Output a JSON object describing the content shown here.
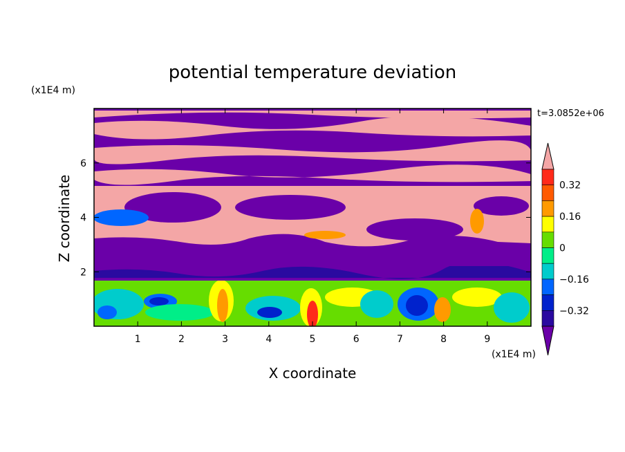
{
  "chart_data": {
    "type": "heatmap",
    "title": "potential temperature deviation",
    "xlabel": "X coordinate",
    "ylabel": "Z coordinate",
    "x_unit": "(x1E4 m)",
    "y_unit": "(x1E4 m)",
    "time_label": "t=3.0852e+06",
    "xlim": [
      0,
      10
    ],
    "ylim": [
      0,
      8
    ],
    "x_ticks": [
      "1",
      "2",
      "3",
      "4",
      "5",
      "6",
      "7",
      "8",
      "9"
    ],
    "y_ticks": [
      "2",
      "4",
      "6"
    ],
    "colorbar": {
      "tick_labels": [
        "0.32",
        "0.16",
        "0",
        "−0.16",
        "−0.32"
      ],
      "levels_top_to_bottom": [
        {
          "label": "above 0.40",
          "color": "#f4a6a6"
        },
        {
          "label": "0.32 to 0.40",
          "color": "#ff2a1a"
        },
        {
          "label": "0.24 to 0.32",
          "color": "#ff5a00"
        },
        {
          "label": "0.16 to 0.24",
          "color": "#ff9a00"
        },
        {
          "label": "0.08 to 0.16",
          "color": "#ffff00"
        },
        {
          "label": "0 to 0.08",
          "color": "#66dd00"
        },
        {
          "label": "-0.08 to 0",
          "color": "#00ee88"
        },
        {
          "label": "-0.16 to -0.08",
          "color": "#00cccc"
        },
        {
          "label": "-0.24 to -0.16",
          "color": "#0066ff"
        },
        {
          "label": "-0.32 to -0.24",
          "color": "#0022cc"
        },
        {
          "label": "-0.40 to -0.32",
          "color": "#2a0aa0"
        },
        {
          "label": "below -0.40",
          "color": "#6a00a8"
        }
      ]
    }
  },
  "colors": {
    "purple": "#6a00a8",
    "pink": "#f4a6a6",
    "red": "#ff2a1a",
    "orange": "#ff9a00",
    "yellow": "#ffff00",
    "green": "#66dd00",
    "spring": "#00ee88",
    "cyan": "#00cccc",
    "blue": "#0066ff",
    "darkblue": "#0022cc",
    "navy": "#2a0aa0"
  }
}
